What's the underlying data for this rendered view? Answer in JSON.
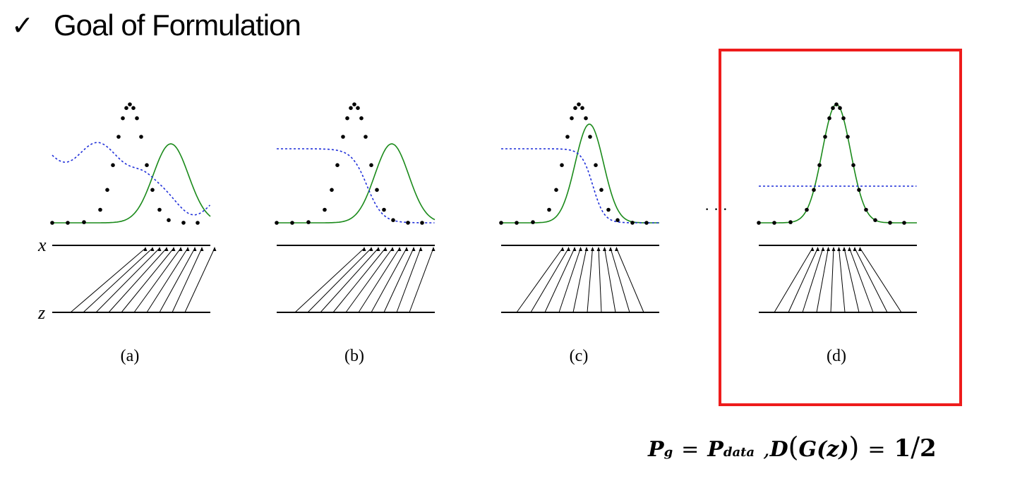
{
  "slide": {
    "check_icon": "✓",
    "title": "Goal of Formulation"
  },
  "figure": {
    "axis_x_label": "x",
    "axis_z_label": "z",
    "ellipsis": "· · ·",
    "panels": [
      {
        "caption": "(a)"
      },
      {
        "caption": "(b)"
      },
      {
        "caption": "(c)"
      },
      {
        "caption": "(d)",
        "highlighted": true
      }
    ],
    "highlight_color": "#ee1c1c",
    "colors": {
      "data_dots": "#000000",
      "generator_curve": "#1a8a1a",
      "discriminator_curve": "#1f2fd9"
    }
  },
  "formula": {
    "p": "P",
    "g_sub": "g",
    "eq1": "=",
    "data_sub": "data",
    "comma": ",",
    "d": "D",
    "lparen_big": "(",
    "g": "G",
    "z_paren": "(z)",
    "rparen_big": ")",
    "eq2": "=",
    "one": "1",
    "slash": "/",
    "two": "2"
  }
}
